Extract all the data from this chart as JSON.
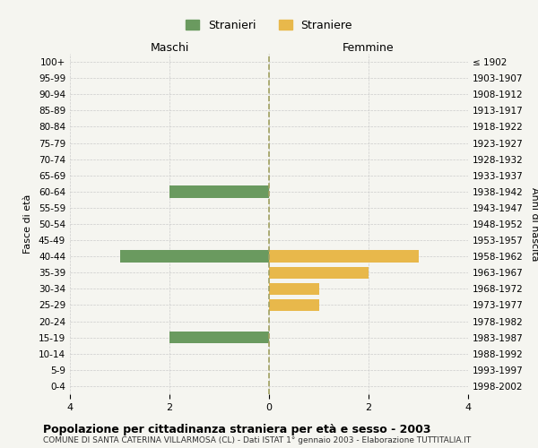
{
  "age_groups": [
    "100+",
    "95-99",
    "90-94",
    "85-89",
    "80-84",
    "75-79",
    "70-74",
    "65-69",
    "60-64",
    "55-59",
    "50-54",
    "45-49",
    "40-44",
    "35-39",
    "30-34",
    "25-29",
    "20-24",
    "15-19",
    "10-14",
    "5-9",
    "0-4"
  ],
  "birth_years": [
    "≤ 1902",
    "1903-1907",
    "1908-1912",
    "1913-1917",
    "1918-1922",
    "1923-1927",
    "1928-1932",
    "1933-1937",
    "1938-1942",
    "1943-1947",
    "1948-1952",
    "1953-1957",
    "1958-1962",
    "1963-1967",
    "1968-1972",
    "1973-1977",
    "1978-1982",
    "1983-1987",
    "1988-1992",
    "1993-1997",
    "1998-2002"
  ],
  "maschi": [
    0,
    0,
    0,
    0,
    0,
    0,
    0,
    0,
    -2,
    0,
    0,
    0,
    -3,
    0,
    0,
    0,
    0,
    -2,
    0,
    0,
    0
  ],
  "femmine": [
    0,
    0,
    0,
    0,
    0,
    0,
    0,
    0,
    0,
    0,
    0,
    0,
    3,
    2,
    1,
    1,
    0,
    0,
    0,
    0,
    0
  ],
  "maschi_color": "#6a9a5f",
  "femmine_color": "#e8b84b",
  "background_color": "#f5f5f0",
  "grid_color": "#cccccc",
  "center_line_color": "#a0a060",
  "title": "Popolazione per cittadinanza straniera per età e sesso - 2003",
  "subtitle": "COMUNE DI SANTA CATERINA VILLARMOSA (CL) - Dati ISTAT 1° gennaio 2003 - Elaborazione TUTTITALIA.IT",
  "xlabel_left": "Maschi",
  "xlabel_right": "Femmine",
  "ylabel_left": "Fasce di età",
  "ylabel_right": "Anni di nascita",
  "legend_maschi": "Stranieri",
  "legend_femmine": "Straniere",
  "xlim": 4,
  "bar_height": 0.75
}
